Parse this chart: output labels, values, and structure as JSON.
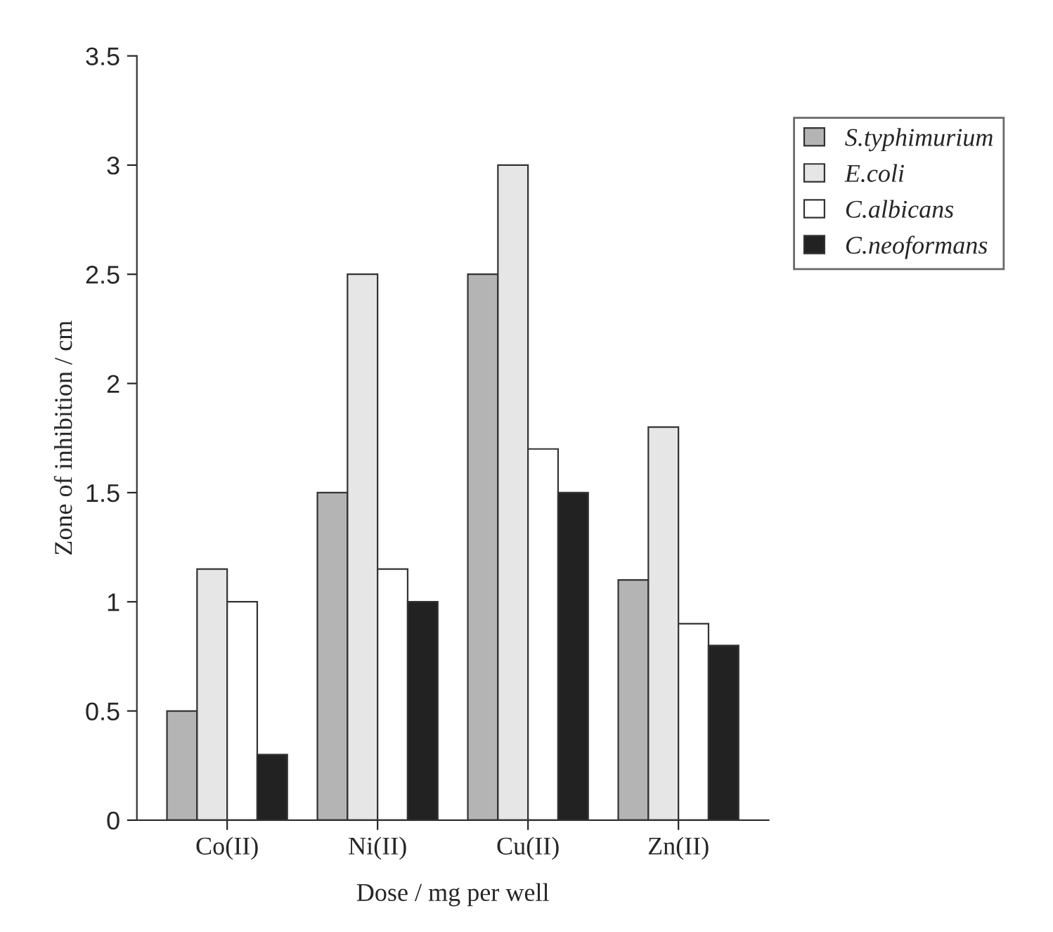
{
  "chart_data": {
    "type": "bar",
    "xlabel": "Dose / mg per well",
    "ylabel": "Zone of inhibition / cm",
    "categories": [
      "Co(II)",
      "Ni(II)",
      "Cu(II)",
      "Zn(II)"
    ],
    "series": [
      {
        "name": "S.typhimurium",
        "color": "#b4b4b4",
        "values": [
          0.5,
          1.5,
          2.5,
          1.1
        ]
      },
      {
        "name": "E.coli",
        "color": "#e6e6e6",
        "values": [
          1.15,
          2.5,
          3.0,
          1.8
        ]
      },
      {
        "name": "C.albicans",
        "color": "#ffffff",
        "values": [
          1.0,
          1.15,
          1.7,
          0.9
        ]
      },
      {
        "name": "C.neoformans",
        "color": "#222222",
        "values": [
          0.3,
          1.0,
          1.5,
          0.8
        ]
      }
    ],
    "ylim": [
      0,
      3.5
    ],
    "yticks": [
      0,
      0.5,
      1,
      1.5,
      2,
      2.5,
      3,
      3.5
    ],
    "legend": "right",
    "grid": false
  }
}
